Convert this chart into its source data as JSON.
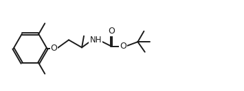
{
  "bg_color": "#ffffff",
  "line_color": "#1a1a1a",
  "line_width": 1.4,
  "font_size": 8.5,
  "figsize": [
    3.55,
    1.33
  ],
  "dpi": 100,
  "xlim": [
    0,
    3.55
  ],
  "ylim": [
    0,
    1.33
  ]
}
